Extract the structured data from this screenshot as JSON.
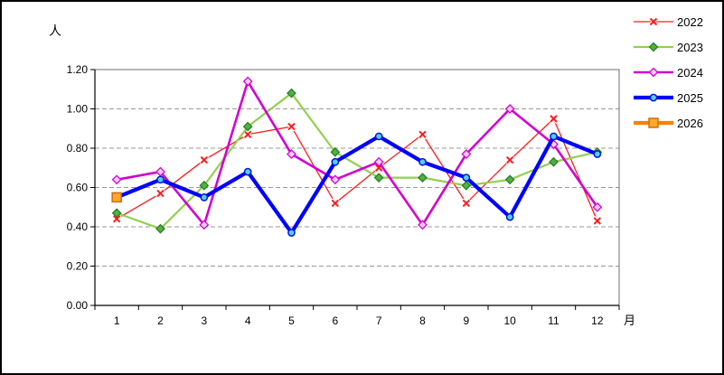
{
  "window": {
    "background": "#FFFFFF",
    "border_color": "#000000"
  },
  "chart_data": {
    "type": "line",
    "title": "",
    "ylabel": "人",
    "xlabel": "月",
    "categories": [
      "1",
      "2",
      "3",
      "4",
      "5",
      "6",
      "7",
      "8",
      "9",
      "10",
      "11",
      "12"
    ],
    "ylim": [
      0,
      1.2
    ],
    "ytick_labels": [
      "0.00",
      "0.20",
      "0.40",
      "0.60",
      "0.80",
      "1.00",
      "1.20"
    ],
    "grid": "horizontal-dashed",
    "gridline_color": "#999999",
    "legend_position": "top-right",
    "series": [
      {
        "name": "2022",
        "line_color": "#FF1A1A",
        "line_width": 1.3,
        "marker": "x",
        "marker_color": "#FF1A1A",
        "marker_fill": "#FFFFFF",
        "values": [
          0.44,
          0.57,
          0.74,
          0.87,
          0.91,
          0.52,
          0.7,
          0.87,
          0.52,
          0.74,
          0.95,
          0.43
        ]
      },
      {
        "name": "2023",
        "line_color": "#92D050",
        "line_width": 2.2,
        "marker": "diamond",
        "marker_color": "#2F7D27",
        "marker_fill": "#4DB342",
        "values": [
          0.47,
          0.39,
          0.61,
          0.91,
          1.08,
          0.78,
          0.65,
          0.65,
          0.61,
          0.64,
          0.73,
          0.78
        ]
      },
      {
        "name": "2024",
        "line_color": "#D102D1",
        "line_width": 2.6,
        "marker": "diamond-open",
        "marker_color": "#D102D1",
        "marker_fill": "#FFCCFF",
        "values": [
          0.64,
          0.68,
          0.41,
          1.14,
          0.77,
          0.64,
          0.73,
          0.41,
          0.77,
          1.0,
          0.82,
          0.5
        ]
      },
      {
        "name": "2025",
        "line_color": "#0000FF",
        "line_width": 4.2,
        "marker": "circle",
        "marker_color": "#0018CC",
        "marker_fill": "#55CCFF",
        "values": [
          0.55,
          0.64,
          0.55,
          0.68,
          0.37,
          0.73,
          0.86,
          0.73,
          0.65,
          0.45,
          0.86,
          0.77
        ]
      },
      {
        "name": "2026",
        "line_color": "#FF8000",
        "line_width": 4.2,
        "marker": "square",
        "marker_color": "#D86A0B",
        "marker_fill": "#FFA928",
        "values": [
          0.55,
          null,
          null,
          null,
          null,
          null,
          null,
          null,
          null,
          null,
          null,
          null
        ]
      }
    ]
  }
}
